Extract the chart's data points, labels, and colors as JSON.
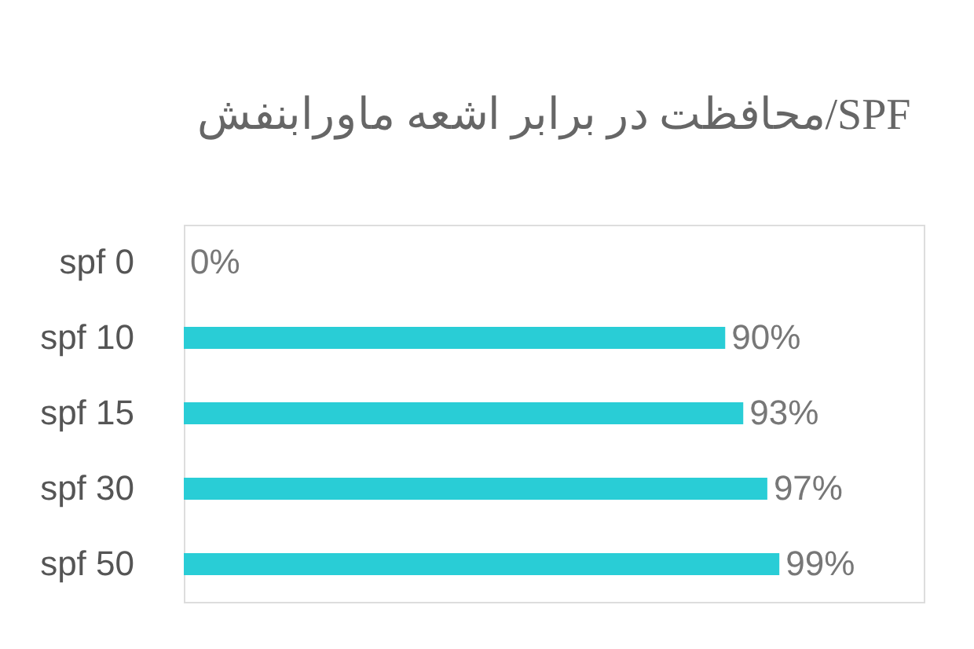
{
  "chart_data": {
    "type": "bar",
    "orientation": "horizontal",
    "title": "محافظت در برابر اشعه ماورابنفش/SPF",
    "categories": [
      "spf   0",
      "spf 10",
      "spf 15",
      "spf 30",
      "spf 50"
    ],
    "values": [
      0,
      90,
      93,
      97,
      99
    ],
    "value_labels": [
      "0%",
      "90%",
      "93%",
      "97%",
      "99%"
    ],
    "color": "#29cdd6",
    "xlim": [
      0,
      123
    ],
    "grid": false,
    "tick_labels": "y"
  }
}
